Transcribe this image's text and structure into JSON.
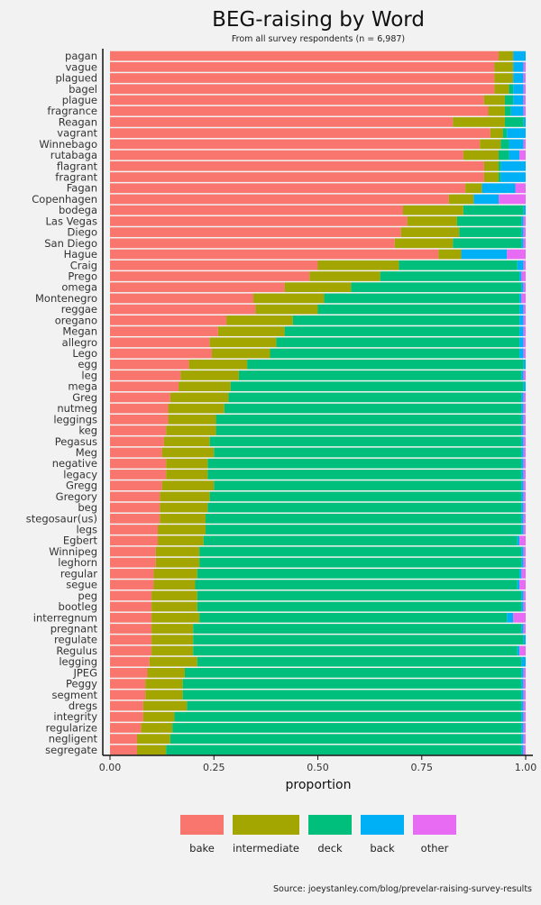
{
  "chart_data": {
    "type": "bar",
    "orientation": "horizontal",
    "stacked": true,
    "title": "BEG-raising by Word",
    "subtitle": "From all survey respondents (n = 6,987)",
    "xlabel": "proportion",
    "ylabel": "",
    "xlim": [
      0,
      1
    ],
    "xticks": [
      "0.00",
      "0.25",
      "0.50",
      "0.75",
      "1.00"
    ],
    "xtick_values": [
      0,
      0.25,
      0.5,
      0.75,
      1
    ],
    "legend_position": "bottom",
    "caption": "Source: joeystanley.com/blog/prevelar-raising-survey-results",
    "colors": {
      "bake": "#F8766D",
      "intermediate": "#A3A500",
      "deck": "#00BF7D",
      "back": "#00B0F6",
      "other": "#E76BF3"
    },
    "series_order": [
      "bake",
      "intermediate",
      "deck",
      "back",
      "other"
    ],
    "categories": [
      "pagan",
      "vague",
      "plagued",
      "bagel",
      "plague",
      "fragrance",
      "Reagan",
      "vagrant",
      "Winnebago",
      "rutabaga",
      "flagrant",
      "fragrant",
      "Fagan",
      "Copenhagen",
      "bodega",
      "Las Vegas",
      "Diego",
      "San Diego",
      "Hague",
      "Craig",
      "Prego",
      "omega",
      "Montenegro",
      "reggae",
      "oregano",
      "Megan",
      "allegro",
      "Lego",
      "egg",
      "leg",
      "mega",
      "Greg",
      "nutmeg",
      "leggings",
      "keg",
      "Pegasus",
      "Meg",
      "negative",
      "legacy",
      "Gregg",
      "Gregory",
      "beg",
      "stegosaur(us)",
      "legs",
      "Egbert",
      "Winnipeg",
      "leghorn",
      "regular",
      "segue",
      "peg",
      "bootleg",
      "interregnum",
      "pregnant",
      "regulate",
      "Regulus",
      "legging",
      "JPEG",
      "Peggy",
      "segment",
      "dregs",
      "integrity",
      "regularize",
      "negligent",
      "segregate"
    ],
    "series": [
      {
        "name": "bake",
        "values": [
          0.935,
          0.925,
          0.925,
          0.925,
          0.9,
          0.91,
          0.825,
          0.915,
          0.89,
          0.85,
          0.9,
          0.9,
          0.855,
          0.815,
          0.705,
          0.715,
          0.7,
          0.685,
          0.79,
          0.5,
          0.48,
          0.42,
          0.345,
          0.35,
          0.28,
          0.26,
          0.24,
          0.245,
          0.19,
          0.17,
          0.165,
          0.145,
          0.14,
          0.14,
          0.135,
          0.13,
          0.125,
          0.135,
          0.135,
          0.125,
          0.12,
          0.12,
          0.12,
          0.115,
          0.115,
          0.11,
          0.11,
          0.105,
          0.105,
          0.1,
          0.1,
          0.1,
          0.1,
          0.1,
          0.1,
          0.095,
          0.09,
          0.085,
          0.085,
          0.08,
          0.08,
          0.075,
          0.065,
          0.065
        ]
      },
      {
        "name": "intermediate",
        "values": [
          0.035,
          0.045,
          0.045,
          0.035,
          0.05,
          0.04,
          0.125,
          0.03,
          0.05,
          0.085,
          0.035,
          0.035,
          0.04,
          0.06,
          0.145,
          0.12,
          0.14,
          0.14,
          0.055,
          0.195,
          0.17,
          0.16,
          0.17,
          0.15,
          0.16,
          0.16,
          0.16,
          0.14,
          0.14,
          0.14,
          0.125,
          0.14,
          0.135,
          0.115,
          0.12,
          0.11,
          0.125,
          0.1,
          0.1,
          0.125,
          0.12,
          0.115,
          0.11,
          0.115,
          0.11,
          0.105,
          0.105,
          0.105,
          0.1,
          0.11,
          0.11,
          0.115,
          0.1,
          0.1,
          0.1,
          0.115,
          0.09,
          0.09,
          0.09,
          0.105,
          0.075,
          0.075,
          0.08,
          0.07
        ]
      },
      {
        "name": "deck",
        "values": [
          0.0,
          0.0,
          0.0,
          0.01,
          0.02,
          0.015,
          0.045,
          0.01,
          0.02,
          0.025,
          0.005,
          0.005,
          0.0,
          0.0,
          0.145,
          0.155,
          0.15,
          0.165,
          0.0,
          0.285,
          0.335,
          0.41,
          0.47,
          0.485,
          0.545,
          0.565,
          0.585,
          0.6,
          0.665,
          0.68,
          0.705,
          0.705,
          0.715,
          0.735,
          0.735,
          0.75,
          0.74,
          0.755,
          0.755,
          0.74,
          0.75,
          0.755,
          0.76,
          0.76,
          0.755,
          0.775,
          0.775,
          0.775,
          0.775,
          0.78,
          0.78,
          0.74,
          0.79,
          0.795,
          0.78,
          0.78,
          0.81,
          0.815,
          0.815,
          0.805,
          0.835,
          0.84,
          0.845,
          0.855
        ]
      },
      {
        "name": "back",
        "values": [
          0.03,
          0.025,
          0.025,
          0.025,
          0.025,
          0.03,
          0.005,
          0.045,
          0.035,
          0.025,
          0.06,
          0.06,
          0.08,
          0.06,
          0.005,
          0.005,
          0.005,
          0.005,
          0.11,
          0.015,
          0.005,
          0.005,
          0.005,
          0.01,
          0.01,
          0.01,
          0.01,
          0.01,
          0.005,
          0.005,
          0.005,
          0.005,
          0.005,
          0.005,
          0.005,
          0.005,
          0.005,
          0.005,
          0.005,
          0.005,
          0.005,
          0.005,
          0.005,
          0.005,
          0.005,
          0.005,
          0.005,
          0.005,
          0.005,
          0.005,
          0.005,
          0.015,
          0.005,
          0.005,
          0.005,
          0.01,
          0.005,
          0.005,
          0.005,
          0.005,
          0.005,
          0.005,
          0.005,
          0.005
        ]
      },
      {
        "name": "other",
        "values": [
          0.0,
          0.005,
          0.005,
          0.005,
          0.005,
          0.005,
          0.0,
          0.0,
          0.005,
          0.015,
          0.0,
          0.0,
          0.025,
          0.065,
          0.0,
          0.005,
          0.005,
          0.005,
          0.045,
          0.005,
          0.01,
          0.005,
          0.01,
          0.005,
          0.005,
          0.005,
          0.005,
          0.005,
          0.0,
          0.005,
          0.0,
          0.005,
          0.005,
          0.005,
          0.005,
          0.005,
          0.005,
          0.005,
          0.005,
          0.005,
          0.005,
          0.005,
          0.005,
          0.005,
          0.015,
          0.005,
          0.005,
          0.01,
          0.015,
          0.005,
          0.005,
          0.03,
          0.005,
          0.0,
          0.015,
          0.0,
          0.005,
          0.005,
          0.005,
          0.005,
          0.005,
          0.005,
          0.005,
          0.005
        ]
      }
    ]
  }
}
